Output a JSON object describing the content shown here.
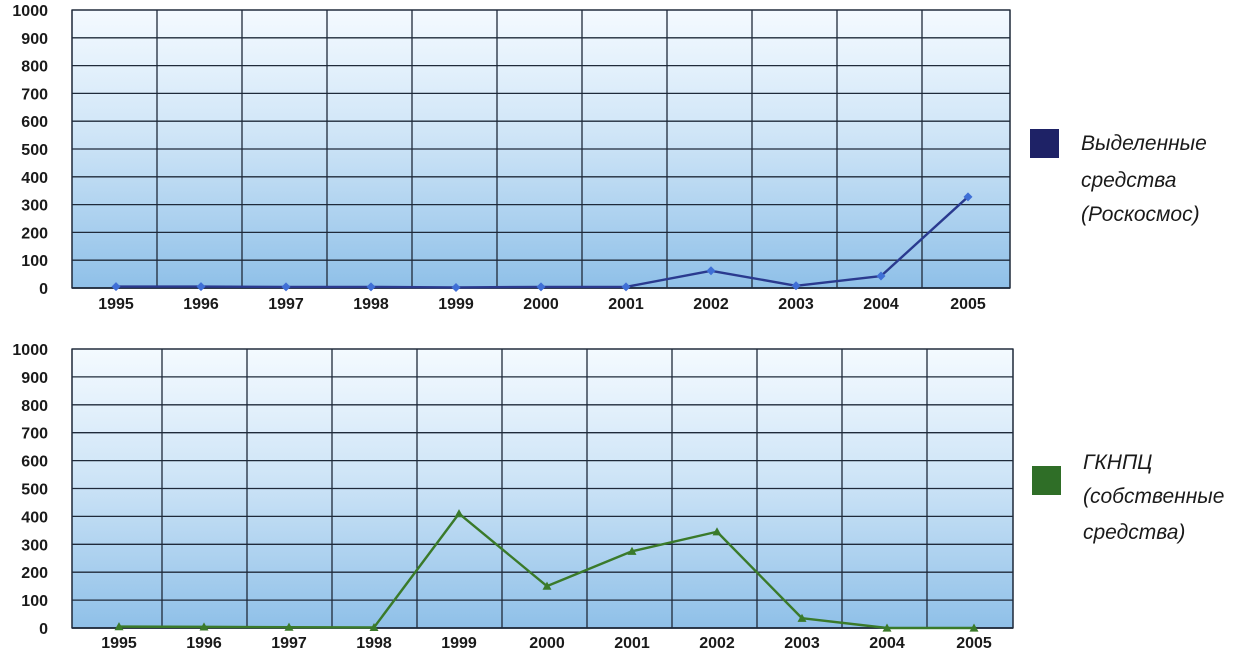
{
  "chart_data": [
    {
      "type": "line",
      "categories": [
        "1995",
        "1996",
        "1997",
        "1998",
        "1999",
        "2000",
        "2001",
        "2002",
        "2003",
        "2004",
        "2005"
      ],
      "series": [
        {
          "name": "Выделенные средства (Роскосмос)",
          "values": [
            5,
            5,
            4,
            4,
            2,
            4,
            4,
            62,
            8,
            43,
            328
          ],
          "color": "#2a3a8f",
          "marker_color": "#3f6fd6",
          "legend_lines": [
            "Выделенные",
            "средства",
            "(Роскосмос)"
          ],
          "legend_color": "#1e2266"
        }
      ],
      "yticks": [
        "0",
        "100",
        "200",
        "300",
        "400",
        "500",
        "600",
        "700",
        "800",
        "900",
        "1000"
      ],
      "ylim": [
        0,
        1000
      ],
      "grid": true,
      "legend_position": "right"
    },
    {
      "type": "line",
      "categories": [
        "1995",
        "1996",
        "1997",
        "1998",
        "1999",
        "2000",
        "2001",
        "2002",
        "2003",
        "2004",
        "2005"
      ],
      "series": [
        {
          "name": "ГКНПЦ (собственные средства)",
          "values": [
            5,
            4,
            3,
            2,
            410,
            150,
            275,
            345,
            35,
            0,
            0
          ],
          "color": "#3a7a2a",
          "marker_color": "#3a7a2a",
          "legend_lines": [
            "ГКНПЦ",
            "(собственные",
            "средства)"
          ],
          "legend_color": "#2f6e27"
        }
      ],
      "yticks": [
        "0",
        "100",
        "200",
        "300",
        "400",
        "500",
        "600",
        "700",
        "800",
        "900",
        "1000"
      ],
      "ylim": [
        0,
        1000
      ],
      "grid": true,
      "legend_position": "right"
    }
  ]
}
